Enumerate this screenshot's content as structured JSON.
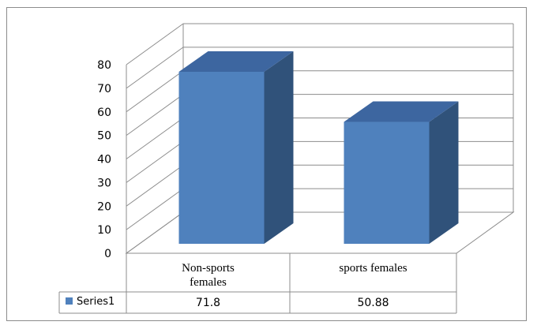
{
  "chart_data": {
    "type": "bar",
    "style": "3d-column",
    "categories": [
      "Non-sports females",
      "sports females"
    ],
    "category_lines": [
      [
        "Non-sports",
        "females"
      ],
      [
        "sports females"
      ]
    ],
    "series": [
      {
        "name": "Series1",
        "values": [
          71.8,
          50.88
        ],
        "value_labels": [
          "71.8",
          "50.88"
        ],
        "color": "#4f81bd"
      }
    ],
    "ylim": [
      0,
      80
    ],
    "yticks": [
      0,
      10,
      20,
      30,
      40,
      50,
      60,
      70,
      80
    ],
    "grid": true,
    "data_table": true,
    "colors": {
      "front": "#4f81bd",
      "side": "#30527a",
      "top": "#3d66a0",
      "grid": "#8c8c8c"
    }
  }
}
